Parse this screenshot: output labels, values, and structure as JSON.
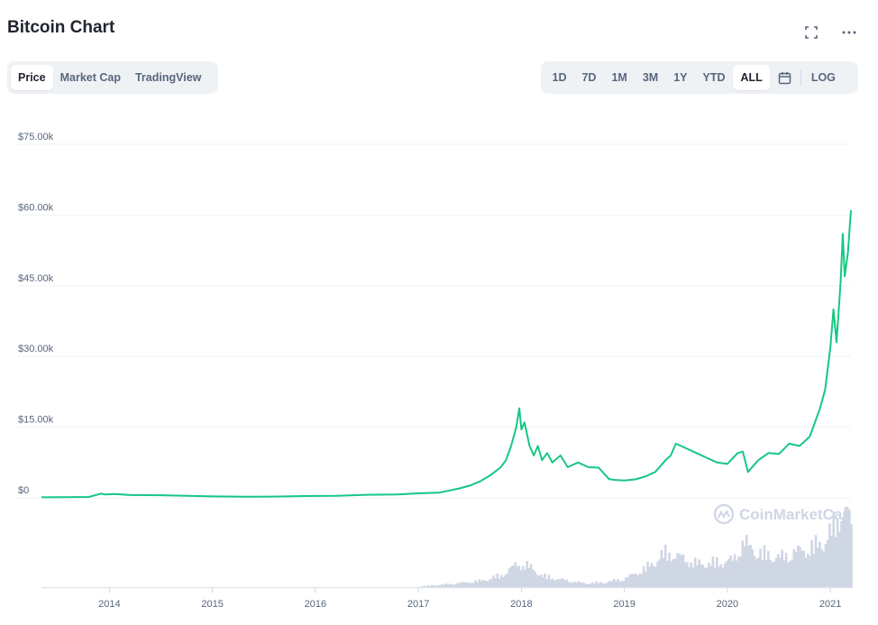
{
  "header": {
    "title": "Bitcoin Chart"
  },
  "icons": {
    "fullscreen": "fullscreen-icon",
    "more": "more-icon",
    "calendar": "calendar-icon",
    "watermark": "coinmarketcap-logo-icon"
  },
  "view_tabs": [
    {
      "label": "Price",
      "active": true
    },
    {
      "label": "Market Cap",
      "active": false
    },
    {
      "label": "TradingView",
      "active": false
    }
  ],
  "range_tabs": [
    {
      "label": "1D",
      "active": false
    },
    {
      "label": "7D",
      "active": false
    },
    {
      "label": "1M",
      "active": false
    },
    {
      "label": "3M",
      "active": false
    },
    {
      "label": "1Y",
      "active": false
    },
    {
      "label": "YTD",
      "active": false
    },
    {
      "label": "ALL",
      "active": true
    }
  ],
  "log_label": "LOG",
  "watermark": "CoinMarketCap",
  "colors": {
    "line": "#16c784",
    "volume": "#cfd6e4",
    "grid": "#eff2f5",
    "text": "#58667e"
  },
  "chart_data": {
    "type": "line",
    "title": "Bitcoin Chart",
    "xlabel": "",
    "ylabel": "",
    "ylim": [
      0,
      75000
    ],
    "yticks": [
      0,
      15000,
      30000,
      45000,
      60000,
      75000
    ],
    "ytick_labels": [
      "$0",
      "$15.00k",
      "$30.00k",
      "$45.00k",
      "$60.00k",
      "$75.00k"
    ],
    "xlim": [
      2013.34,
      2021.2
    ],
    "xticks": [
      2014,
      2015,
      2016,
      2017,
      2018,
      2019,
      2020,
      2021
    ],
    "xtick_labels": [
      "2014",
      "2015",
      "2016",
      "2017",
      "2018",
      "2019",
      "2020",
      "2021"
    ],
    "grid": true,
    "series": [
      {
        "x": [
          2013.34,
          2013.6,
          2013.8,
          2013.92,
          2013.96,
          2014.05,
          2014.2,
          2014.5,
          2014.8,
          2015.0,
          2015.3,
          2015.6,
          2015.9,
          2016.2,
          2016.5,
          2016.8,
          2017.0,
          2017.2,
          2017.4,
          2017.5,
          2017.6,
          2017.7,
          2017.8,
          2017.85,
          2017.9,
          2017.95,
          2017.98,
          2018.0,
          2018.03,
          2018.08,
          2018.12,
          2018.16,
          2018.2,
          2018.25,
          2018.3,
          2018.38,
          2018.45,
          2018.55,
          2018.65,
          2018.75,
          2018.85,
          2018.9,
          2019.0,
          2019.1,
          2019.2,
          2019.3,
          2019.4,
          2019.45,
          2019.5,
          2019.6,
          2019.7,
          2019.8,
          2019.9,
          2020.0,
          2020.1,
          2020.15,
          2020.2,
          2020.3,
          2020.4,
          2020.5,
          2020.6,
          2020.7,
          2020.8,
          2020.85,
          2020.9,
          2020.95,
          2021.0,
          2021.03,
          2021.06,
          2021.1,
          2021.12,
          2021.14,
          2021.17,
          2021.2
        ],
        "y": [
          120,
          130,
          200,
          900,
          700,
          800,
          600,
          550,
          400,
          300,
          250,
          260,
          380,
          420,
          650,
          700,
          950,
          1100,
          2000,
          2600,
          3500,
          4800,
          6500,
          8000,
          11000,
          15000,
          19000,
          14500,
          16000,
          11000,
          9000,
          11000,
          8000,
          9500,
          7500,
          9000,
          6500,
          7500,
          6500,
          6400,
          4000,
          3800,
          3700,
          3900,
          4500,
          5500,
          8000,
          9000,
          11500,
          10500,
          9500,
          8500,
          7500,
          7200,
          9500,
          9800,
          5500,
          8000,
          9500,
          9300,
          11500,
          11000,
          13000,
          16000,
          19000,
          23000,
          32000,
          40000,
          33000,
          46000,
          56000,
          47000,
          52000,
          61000
        ]
      }
    ],
    "volume": {
      "x": [
        2017.0,
        2017.3,
        2017.6,
        2017.8,
        2017.95,
        2018.05,
        2018.2,
        2018.4,
        2018.6,
        2018.8,
        2019.0,
        2019.2,
        2019.4,
        2019.5,
        2019.7,
        2019.9,
        2020.05,
        2020.15,
        2020.2,
        2020.35,
        2020.5,
        2020.65,
        2020.8,
        2020.95,
        2021.05,
        2021.12,
        2021.18,
        2021.2
      ],
      "values": [
        0.02,
        0.05,
        0.09,
        0.16,
        0.3,
        0.28,
        0.15,
        0.1,
        0.06,
        0.07,
        0.12,
        0.25,
        0.45,
        0.4,
        0.3,
        0.32,
        0.35,
        0.6,
        0.5,
        0.42,
        0.38,
        0.45,
        0.5,
        0.6,
        0.85,
        1.0,
        0.9,
        0.6
      ]
    }
  }
}
